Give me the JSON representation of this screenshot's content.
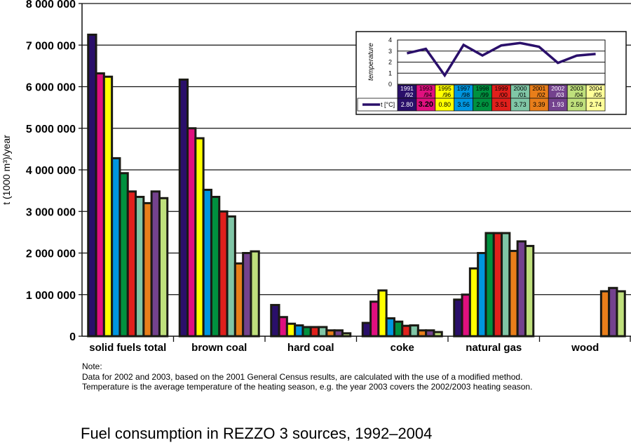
{
  "chart_data": {
    "type": "bar",
    "ylabel": "t (1000 m³)/year",
    "ylim": [
      0,
      8000000
    ],
    "yticks": [
      "0",
      "1 000 000",
      "2 000 000",
      "3 000 000",
      "4 000 000",
      "5 000 000",
      "6 000 000",
      "7 000 000",
      "8 000 000"
    ],
    "grid": true,
    "categories": [
      "solid fuels total",
      "brown coal",
      "hard coal",
      "coke",
      "natural gas",
      "wood"
    ],
    "series_colors": [
      "#2a0f6a",
      "#e0107f",
      "#ffff00",
      "#0096e0",
      "#00913f",
      "#e0201c",
      "#80c6a6",
      "#e87e1a",
      "#74428e",
      "#bfe07c"
    ],
    "series": [
      {
        "values": [
          7250000,
          6170000,
          750000,
          320000,
          880000,
          null
        ]
      },
      {
        "values": [
          6320000,
          5000000,
          460000,
          830000,
          1000000,
          null
        ]
      },
      {
        "values": [
          6240000,
          4760000,
          300000,
          1100000,
          1630000,
          null
        ]
      },
      {
        "values": [
          4280000,
          3520000,
          260000,
          430000,
          2000000,
          null
        ]
      },
      {
        "values": [
          3920000,
          3350000,
          220000,
          350000,
          2480000,
          null
        ]
      },
      {
        "values": [
          3480000,
          3000000,
          220000,
          250000,
          2480000,
          null
        ]
      },
      {
        "values": [
          3350000,
          2880000,
          220000,
          260000,
          2480000,
          null
        ]
      },
      {
        "values": [
          3200000,
          1750000,
          140000,
          140000,
          2050000,
          1080000
        ]
      },
      {
        "values": [
          3480000,
          2000000,
          140000,
          140000,
          2280000,
          1160000
        ]
      },
      {
        "values": [
          3320000,
          2040000,
          70000,
          100000,
          2170000,
          1080000
        ]
      }
    ],
    "inset": {
      "type": "line",
      "ylabel": "temperature",
      "ylim": [
        0,
        4
      ],
      "yticks": [
        "0",
        "1",
        "2",
        "3",
        "4"
      ],
      "series_name": "t [°C]",
      "line_color": "#2a0f6a",
      "seasons": [
        {
          "top": "1991",
          "bottom": "/92",
          "value": "2.80",
          "bg": "#2a0f6a",
          "fg": "#fff"
        },
        {
          "top": "1993",
          "bottom": "/94",
          "value": "3.20",
          "bg": "#e0107f",
          "fg": "#000"
        },
        {
          "top": "1995",
          "bottom": "/96",
          "value": "0.80",
          "bg": "#ffff00",
          "fg": "#000"
        },
        {
          "top": "1997",
          "bottom": "/98",
          "value": "3.56",
          "bg": "#0096e0",
          "fg": "#000"
        },
        {
          "top": "1998",
          "bottom": "/99",
          "value": "2.60",
          "bg": "#00913f",
          "fg": "#000"
        },
        {
          "top": "1999",
          "bottom": "/00",
          "value": "3.51",
          "bg": "#e0201c",
          "fg": "#000"
        },
        {
          "top": "2000",
          "bottom": "/01",
          "value": "3.73",
          "bg": "#80c6a6",
          "fg": "#000"
        },
        {
          "top": "2001",
          "bottom": "/02",
          "value": "3.39",
          "bg": "#e87e1a",
          "fg": "#000"
        },
        {
          "top": "2002",
          "bottom": "/03",
          "value": "1.93",
          "bg": "#74428e",
          "fg": "#fff"
        },
        {
          "top": "2003",
          "bottom": "/04",
          "value": "2.59",
          "bg": "#bfe07c",
          "fg": "#000"
        },
        {
          "top": "2004",
          "bottom": "/05",
          "value": "2.74",
          "bg": "#ffff99",
          "fg": "#000"
        }
      ]
    }
  },
  "note": {
    "heading": "Note:",
    "line1": "Data for 2002 and 2003, based on the 2001 General Census results, are calculated with the use of a modified method.",
    "line2": "Temperature is the average temperature of the heating season, e.g. the year 2003 covers the 2002/2003 heating season."
  },
  "title": "Fuel consumption in REZZO 3 sources, 1992–2004"
}
